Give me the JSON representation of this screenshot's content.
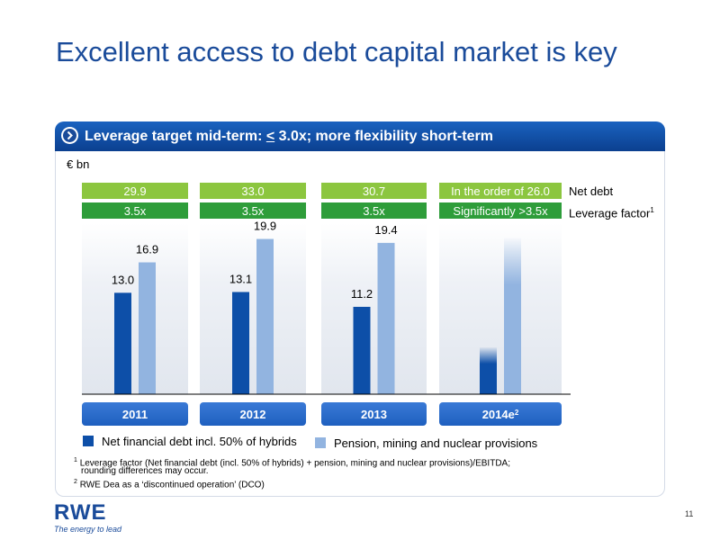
{
  "slide": {
    "title": "Excellent access to debt capital market is key",
    "page_number": "11"
  },
  "panel": {
    "header_prefix": "Leverage target mid-term: ",
    "header_lt": "<",
    "header_suffix": " 3.0x; more flexibility short-term"
  },
  "logo": {
    "word": "RWE",
    "tagline": "The energy to lead"
  },
  "footnotes": [
    {
      "mark": "1",
      "text": "Leverage factor (Net financial debt (incl. 50% of hybrids) + pension, mining and nuclear provisions)/EBITDA;"
    },
    {
      "mark": "",
      "text": "rounding differences may occur."
    },
    {
      "mark": "2",
      "text": "RWE Dea as a ‘discontinued operation’ (DCO)"
    }
  ],
  "colors": {
    "dark_blue": "#0d4fa8",
    "light_blue": "#92b4e0",
    "green_light": "#8cc63f",
    "green_dark": "#2e9d3a",
    "year_label": "#1e5fbf"
  },
  "chart_data": {
    "type": "bar",
    "unit_label": "€ bn",
    "categories": [
      "2011",
      "2012",
      "2013",
      "2014e"
    ],
    "category_superscripts": [
      "",
      "",
      "",
      "2"
    ],
    "series": [
      {
        "name": "Net financial debt incl. 50% of hybrids",
        "values": [
          13.0,
          13.1,
          11.2,
          null
        ]
      },
      {
        "name": "Pension, mining and nuclear provisions",
        "values": [
          16.9,
          19.9,
          19.4,
          null
        ]
      }
    ],
    "value_labels": {
      "net_financial_debt": [
        "13.0",
        "13.1",
        "11.2",
        ""
      ],
      "pension_provisions": [
        "16.9",
        "19.9",
        "19.4",
        ""
      ]
    },
    "estimated_2014": {
      "net_financial_debt_approx": 6.0,
      "pension_provisions_approx": 20.0
    },
    "net_debt_row": {
      "label": "Net debt",
      "values": [
        "29.9",
        "33.0",
        "30.7",
        "In the order of 26.0"
      ]
    },
    "leverage_row": {
      "label": "Leverage factor",
      "label_superscript": "1",
      "values": [
        "3.5x",
        "3.5x",
        "3.5x",
        "Significantly >3.5x"
      ]
    },
    "ylim": [
      0,
      30
    ],
    "legend_position": "bottom",
    "grid": false
  }
}
